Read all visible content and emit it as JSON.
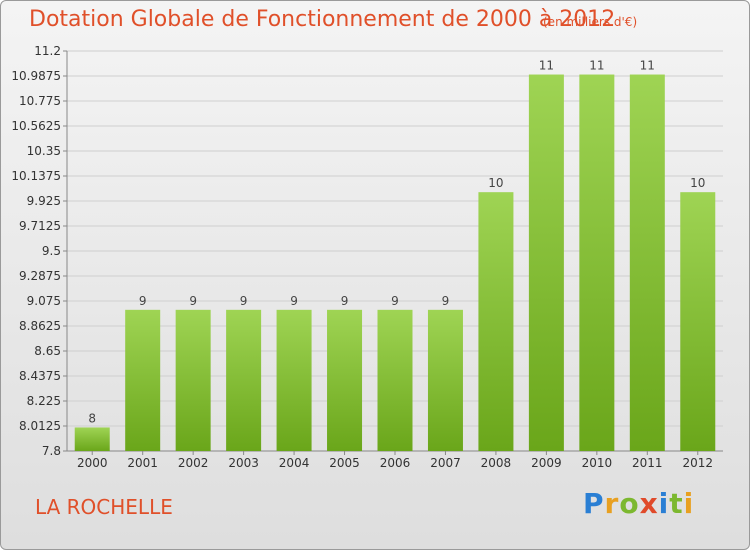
{
  "title": "Dotation Globale de Fonctionnement de 2000 à 2012",
  "unit_note": "(en milliers d'€)",
  "place": "LA ROCHELLE",
  "logo": {
    "letters": [
      "P",
      "r",
      "o",
      "x",
      "i",
      "t",
      "i"
    ],
    "colors": [
      "#2a7fd4",
      "#e8a020",
      "#7cb82f",
      "#e04a2a",
      "#2a7fd4",
      "#7cb82f",
      "#e8a020"
    ]
  },
  "colors": {
    "bar_light": "#9fd454",
    "bar_dark": "#6aa61a",
    "accent": "#e0502a"
  },
  "chart_data": {
    "type": "bar",
    "categories": [
      "2000",
      "2001",
      "2002",
      "2003",
      "2004",
      "2005",
      "2006",
      "2007",
      "2008",
      "2009",
      "2010",
      "2011",
      "2012"
    ],
    "values": [
      8,
      9,
      9,
      9,
      9,
      9,
      9,
      9,
      10,
      11,
      11,
      11,
      10
    ],
    "data_labels": [
      "8",
      "9",
      "9",
      "9",
      "9",
      "9",
      "9",
      "9",
      "10",
      "11",
      "11",
      "11",
      "10"
    ],
    "ylim": [
      7.8,
      11.2
    ],
    "yticks": [
      7.8,
      8.0125,
      8.225,
      8.4375,
      8.65,
      8.8625,
      9.075,
      9.2875,
      9.5,
      9.7125,
      9.925,
      10.1375,
      10.35,
      10.5625,
      10.775,
      10.9875,
      11.2
    ],
    "ytick_labels": [
      "7.8",
      "8.0125",
      "8.225",
      "8.4375",
      "8.65",
      "8.8625",
      "9.075",
      "9.2875",
      "9.5",
      "9.7125",
      "9.925",
      "10.1375",
      "10.35",
      "10.5625",
      "10.775",
      "10.9875",
      "11.2"
    ],
    "grid": true
  }
}
